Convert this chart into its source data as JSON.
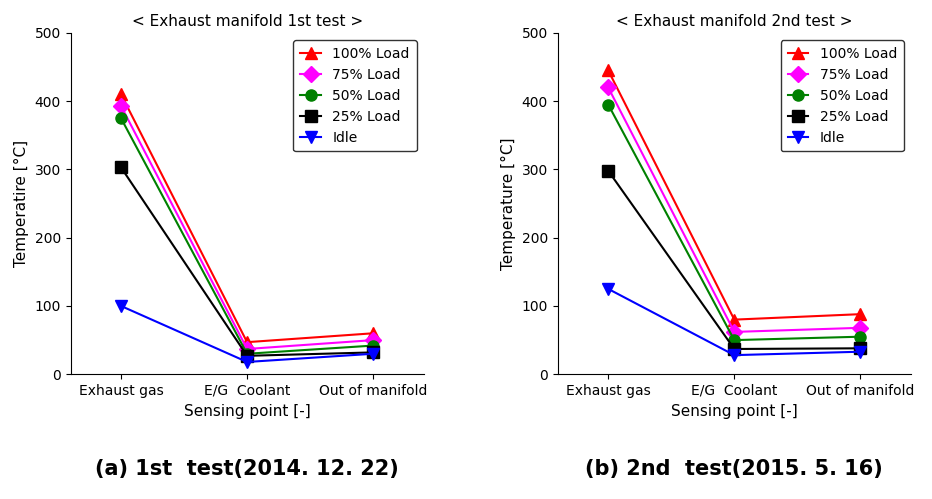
{
  "plot1": {
    "title": "< Exhaust manifold 1st test >",
    "ylabel": "Temperatire [°C]",
    "xlabel": "Sensing point [-]",
    "xticks": [
      "Exhaust gas",
      "E/G  Coolant",
      "Out of manifold"
    ],
    "ylim": [
      0,
      500
    ],
    "yticks": [
      0,
      100,
      200,
      300,
      400,
      500
    ],
    "series": [
      {
        "label": "100% Load",
        "color": "#ff0000",
        "marker": "^",
        "values": [
          410,
          47,
          60
        ]
      },
      {
        "label": "75% Load",
        "color": "#ff00ff",
        "marker": "D",
        "values": [
          393,
          37,
          50
        ]
      },
      {
        "label": "50% Load",
        "color": "#008000",
        "marker": "o",
        "values": [
          375,
          30,
          42
        ]
      },
      {
        "label": "25% Load",
        "color": "#000000",
        "marker": "s",
        "values": [
          303,
          27,
          32
        ]
      },
      {
        "label": "Idle",
        "color": "#0000ff",
        "marker": "v",
        "values": [
          100,
          18,
          30
        ]
      }
    ]
  },
  "plot2": {
    "title": "< Exhaust manifold 2nd test >",
    "ylabel": "Temperature [°C]",
    "xlabel": "Sensing point [-]",
    "xticks": [
      "Exhaust gas",
      "E/G  Coolant",
      "Out of manifold"
    ],
    "ylim": [
      0,
      500
    ],
    "yticks": [
      0,
      100,
      200,
      300,
      400,
      500
    ],
    "series": [
      {
        "label": "100% Load",
        "color": "#ff0000",
        "marker": "^",
        "values": [
          445,
          80,
          88
        ]
      },
      {
        "label": "75% Load",
        "color": "#ff00ff",
        "marker": "D",
        "values": [
          420,
          62,
          68
        ]
      },
      {
        "label": "50% Load",
        "color": "#008000",
        "marker": "o",
        "values": [
          395,
          50,
          55
        ]
      },
      {
        "label": "25% Load",
        "color": "#000000",
        "marker": "s",
        "values": [
          298,
          37,
          38
        ]
      },
      {
        "label": "Idle",
        "color": "#0000ff",
        "marker": "v",
        "values": [
          125,
          28,
          33
        ]
      }
    ]
  },
  "caption1": "(a) 1st  test(2014. 12. 22)",
  "caption2": "(b) 2nd  test(2015. 5. 16)",
  "caption_fontsize": 15,
  "bg_color": "#ffffff",
  "markersize": 8,
  "linewidth": 1.5,
  "legend_fontsize": 10,
  "axis_fontsize": 11,
  "title_fontsize": 11,
  "tick_fontsize": 10
}
